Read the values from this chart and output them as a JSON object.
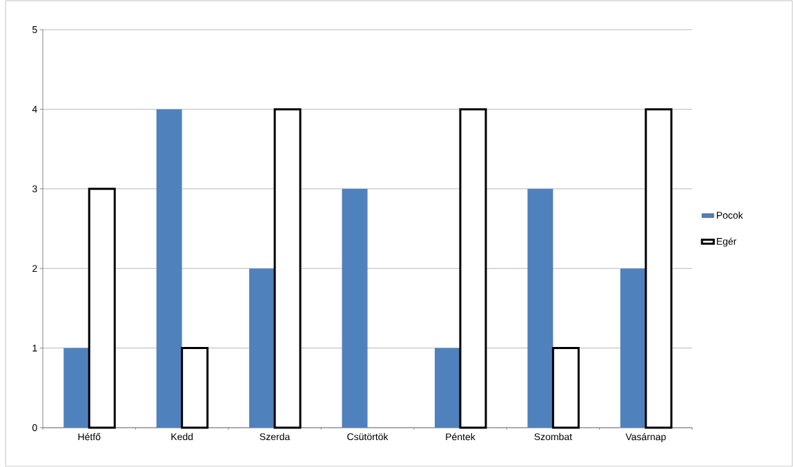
{
  "chart_data": {
    "type": "bar",
    "categories": [
      "Hétfő",
      "Kedd",
      "Szerda",
      "Csütörtök",
      "Péntek",
      "Szombat",
      "Vasárnap"
    ],
    "series": [
      {
        "name": "Pocok",
        "color": "#4f81bd",
        "values": [
          1,
          4,
          2,
          3,
          1,
          3,
          2
        ]
      },
      {
        "name": "Egér",
        "color": "#ffffff",
        "values": [
          3,
          1,
          4,
          null,
          4,
          1,
          4
        ]
      }
    ],
    "ylim": [
      0,
      5
    ],
    "yticks": [
      0,
      1,
      2,
      3,
      4,
      5
    ],
    "grid": "y",
    "legend": "right"
  }
}
